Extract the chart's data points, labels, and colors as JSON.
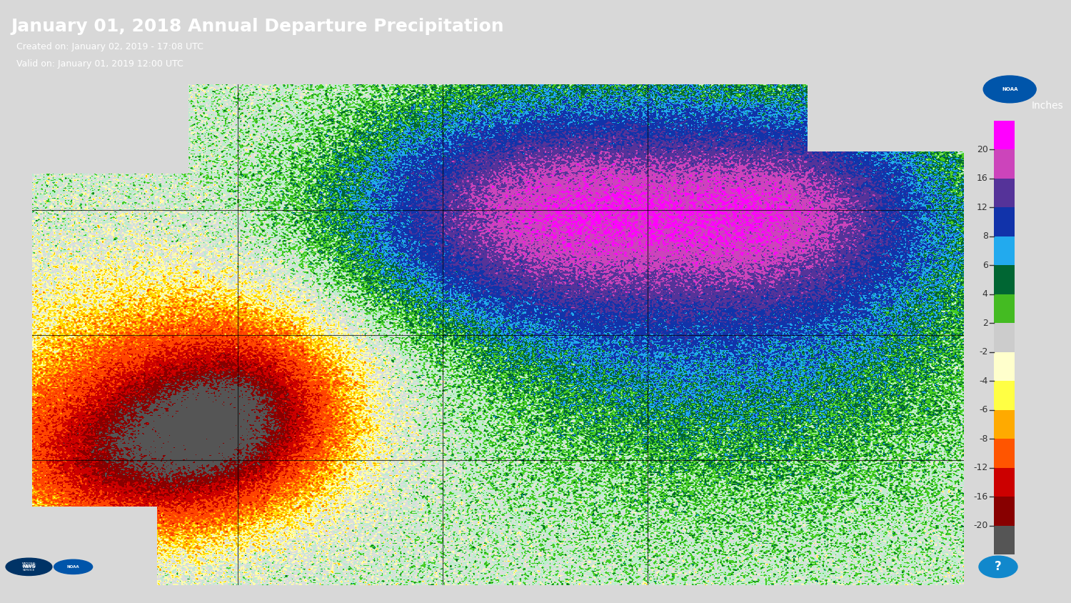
{
  "title": "January 01, 2018 Annual Departure Precipitation",
  "subtitle1": "  Created on: January 02, 2019 - 17:08 UTC",
  "subtitle2": "  Valid on: January 01, 2019 12:00 UTC",
  "header_bg": "#2E3B8E",
  "header_text_color": "white",
  "body_bg": "#D8D8D8",
  "map_bg": "#E0E0E0",
  "colorbar_label": "Inches",
  "colorbar_ticks": [
    20,
    16,
    12,
    8,
    6,
    4,
    2,
    -2,
    -4,
    -6,
    -8,
    -12,
    -16,
    -20
  ],
  "colorbar_colors": [
    "#FF00FF",
    "#CC00CC",
    "#220088",
    "#0066CC",
    "#00BBEE",
    "#006600",
    "#00BB00",
    "#CCCCCC",
    "#FFFFAA",
    "#FFFF00",
    "#FFAA00",
    "#FF4400",
    "#CC0000",
    "#880000",
    "#888888"
  ],
  "colorbar_bounds": [
    20,
    16,
    12,
    8,
    6,
    4,
    2,
    0,
    -2,
    -4,
    -6,
    -8,
    -12,
    -16,
    -20
  ],
  "fig_width": 15.0,
  "fig_height": 8.44
}
